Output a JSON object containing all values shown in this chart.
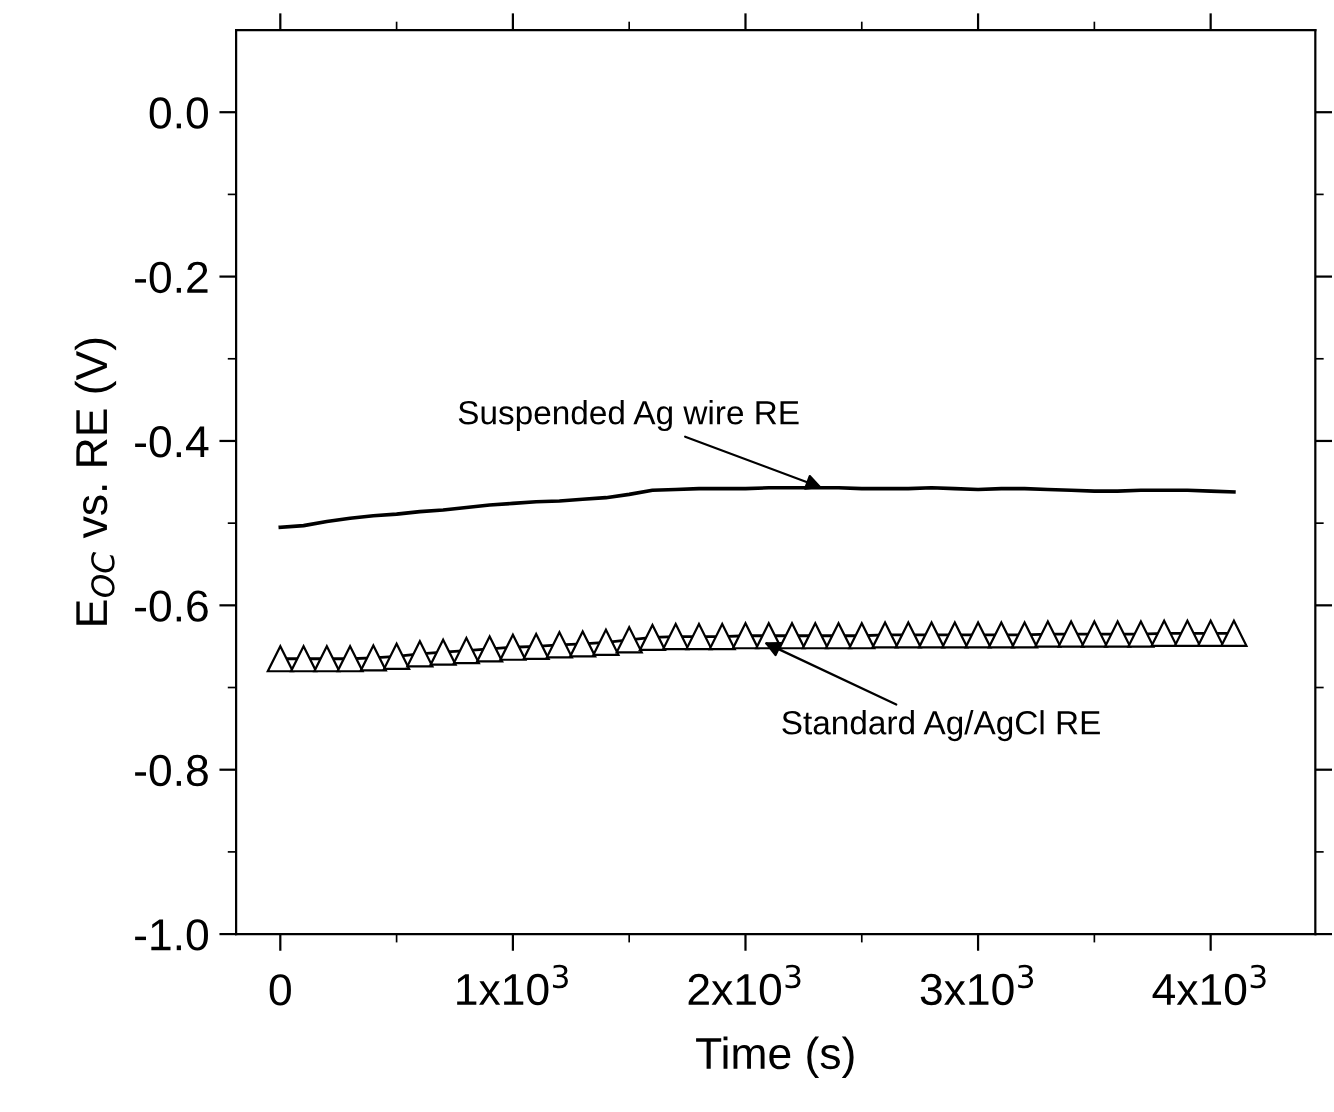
{
  "chart_data": {
    "type": "line",
    "xlabel": "Time (s)",
    "ylabel": "E$_{OC}$ vs. RE (V)",
    "xlim": [
      -190,
      4450
    ],
    "ylim": [
      -1.0,
      0.1
    ],
    "xticks": [
      0,
      {
        "value": 500,
        "label": null
      },
      {
        "value": 1000,
        "label": "1x10$^{3}$"
      },
      {
        "value": 1500,
        "label": null
      },
      {
        "value": 2000,
        "label": "2x10$^{3}$"
      },
      {
        "value": 2500,
        "label": null
      },
      {
        "value": 3000,
        "label": "3x10$^{3}$"
      },
      {
        "value": 3500,
        "label": null
      },
      {
        "value": 4000,
        "label": "4x10$^{3}$"
      }
    ],
    "yticks": [
      {
        "value": -1.0,
        "label": "-1.0"
      },
      {
        "value": -0.9,
        "label": null
      },
      {
        "value": -0.8,
        "label": "-0.8"
      },
      {
        "value": -0.7,
        "label": null
      },
      {
        "value": -0.6,
        "label": "-0.6"
      },
      {
        "value": -0.5,
        "label": null
      },
      {
        "value": -0.4,
        "label": "-0.4"
      },
      {
        "value": -0.3,
        "label": null
      },
      {
        "value": -0.2,
        "label": "-0.2"
      },
      {
        "value": -0.1,
        "label": null
      },
      {
        "value": 0.0,
        "label": "0.0"
      }
    ],
    "x": [
      0,
      100,
      200,
      300,
      400,
      500,
      600,
      700,
      800,
      900,
      1000,
      1100,
      1200,
      1300,
      1400,
      1500,
      1600,
      1700,
      1800,
      1900,
      2000,
      2100,
      2200,
      2300,
      2400,
      2500,
      2600,
      2700,
      2800,
      2900,
      3000,
      3100,
      3200,
      3300,
      3400,
      3500,
      3600,
      3700,
      3800,
      3900,
      4000,
      4100
    ],
    "series": [
      {
        "color": "#000000",
        "marker": "none",
        "values": [
          -0.505,
          -0.503,
          -0.498,
          -0.494,
          -0.491,
          -0.489,
          -0.486,
          -0.484,
          -0.481,
          -0.478,
          -0.476,
          -0.474,
          -0.473,
          -0.471,
          -0.469,
          -0.465,
          -0.46,
          -0.459,
          -0.458,
          -0.458,
          -0.458,
          -0.457,
          -0.457,
          -0.457,
          -0.457,
          -0.458,
          -0.458,
          -0.458,
          -0.457,
          -0.458,
          -0.459,
          -0.458,
          -0.458,
          -0.459,
          -0.46,
          -0.461,
          -0.461,
          -0.46,
          -0.46,
          -0.46,
          -0.461,
          -0.462
        ]
      },
      {
        "color": "#000000",
        "marker": "triangle",
        "values": [
          -0.665,
          -0.665,
          -0.665,
          -0.665,
          -0.664,
          -0.662,
          -0.659,
          -0.657,
          -0.655,
          -0.653,
          -0.651,
          -0.65,
          -0.648,
          -0.647,
          -0.645,
          -0.642,
          -0.639,
          -0.638,
          -0.638,
          -0.638,
          -0.637,
          -0.637,
          -0.637,
          -0.637,
          -0.637,
          -0.637,
          -0.636,
          -0.636,
          -0.636,
          -0.636,
          -0.636,
          -0.636,
          -0.636,
          -0.635,
          -0.635,
          -0.635,
          -0.635,
          -0.635,
          -0.634,
          -0.634,
          -0.634,
          -0.634
        ]
      }
    ],
    "annotations": [
      {
        "text": "Suspended Ag wire RE",
        "x": 2330,
        "y": -0.457
      },
      {
        "text": "Standard Ag/AgCl RE",
        "x": 2080,
        "y": -0.645
      }
    ],
    "grid": false,
    "legend": false
  }
}
